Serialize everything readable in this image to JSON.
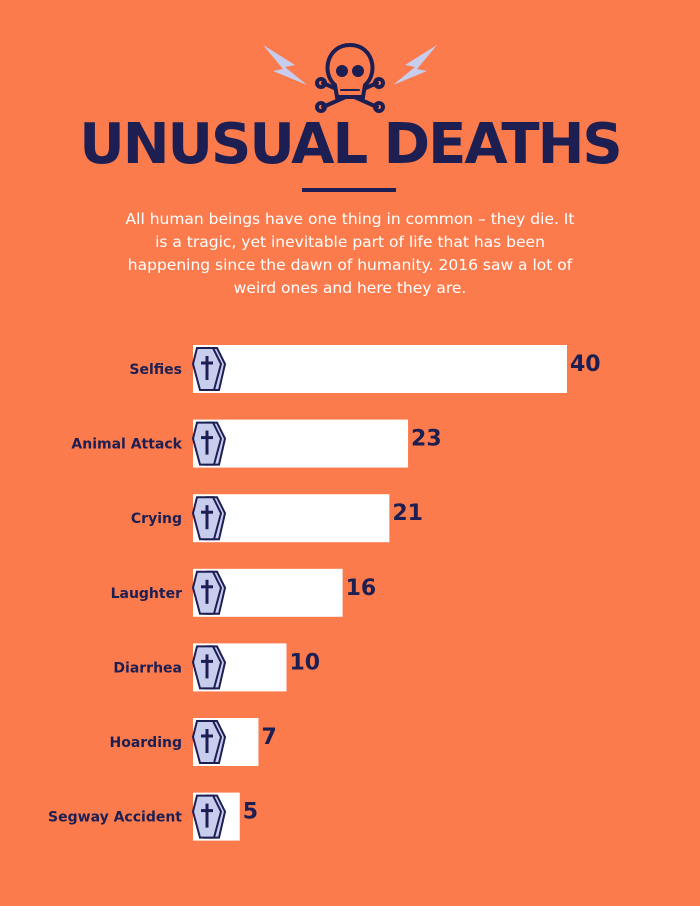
{
  "title": "UNUSUAL DEATHS",
  "subtitle": "All human beings have one thing in common – they die. It is a tragic, yet inevitable part of life that has been happening since the dawn of humanity. 2016 saw a lot of weird ones and here they are.",
  "colors": {
    "background": "#FC7B4D",
    "navy": "#1D1E52",
    "bar": "#FFFFFF",
    "accent": "#C8CDEE"
  },
  "icons": [
    "skull-crossbones-icon",
    "lightning-icon",
    "coffin-icon"
  ],
  "chart_data": {
    "type": "bar",
    "orientation": "horizontal",
    "categories": [
      "Selfies",
      "Animal Attack",
      "Crying",
      "Laughter",
      "Diarrhea",
      "Hoarding",
      "Segway Accident"
    ],
    "values": [
      40,
      23,
      21,
      16,
      10,
      7,
      5
    ],
    "title": "UNUSUAL DEATHS",
    "xlabel": "",
    "ylabel": "",
    "grid": false
  }
}
